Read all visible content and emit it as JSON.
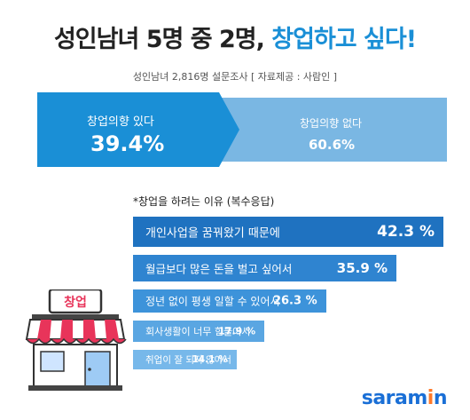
{
  "title_main": "성인남녀 5명 중 2명,",
  "title_highlight": "창업하고 싶다!",
  "subtitle": "성인남녀 2,816명 설문조사 [ 자료제공 : 사람인 ]",
  "split": {
    "yes_label": "창업의향 있다",
    "yes_value": "39.4%",
    "no_label": "창업의향 없다",
    "no_value": "60.6%",
    "yes_pct": 39.4,
    "no_pct": 60.6,
    "colors": {
      "yes": "#1a8fd6",
      "no": "#7ab7e3"
    }
  },
  "reason_title": "*창업을 하려는 이유 (복수응답)",
  "store_sign": "창업",
  "logo": {
    "pre": "saram",
    "i": "i",
    "post": "n"
  },
  "chart_data": {
    "type": "bar",
    "orientation": "horizontal",
    "categories": [
      "개인사업을 꿈꿔왔기 때문에",
      "월급보다 많은 돈을 벌고 싶어서",
      "정년 없이 평생 일할 수 있어서",
      "회사생활이 너무 힘들어서",
      "취업이 잘 되지 않아서"
    ],
    "values": [
      42.3,
      35.9,
      26.3,
      17.9,
      14.1
    ],
    "value_labels": [
      "42.3 %",
      "35.9 %",
      "26.3 %",
      "17.9 %",
      "14.1 %"
    ],
    "colors": [
      "#1f72c0",
      "#2f84d0",
      "#3d93da",
      "#5aa6e2",
      "#77b8ea"
    ],
    "unit": "%"
  }
}
